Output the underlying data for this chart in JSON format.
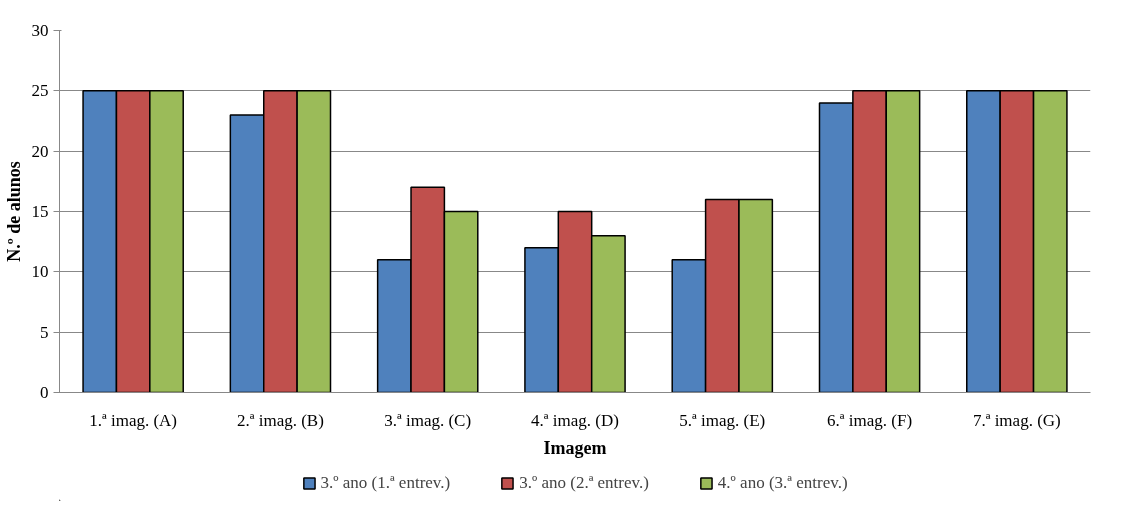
{
  "chart_data": {
    "type": "bar",
    "xlabel": "Imagem",
    "ylabel": "N.º de alunos",
    "categories": [
      "1.ª imag. (A)",
      "2.ª imag. (B)",
      "3.ª imag. (C)",
      "4.ª imag. (D)",
      "5.ª imag. (E)",
      "6.ª imag. (F)",
      "7.ª imag. (G)"
    ],
    "series": [
      {
        "name": "3.º ano (1.ª entrev.)",
        "color": "#4f81bd",
        "values": [
          25,
          23,
          11,
          12,
          11,
          24,
          25
        ]
      },
      {
        "name": "3.º ano (2.ª entrev.)",
        "color": "#c0504d",
        "values": [
          25,
          25,
          17,
          15,
          16,
          25,
          25
        ]
      },
      {
        "name": "4.º ano (3.ª entrev.)",
        "color": "#9bbb59",
        "values": [
          25,
          25,
          15,
          13,
          16,
          25,
          25
        ]
      }
    ],
    "ylim": [
      0,
      30
    ],
    "yticks": [
      0,
      5,
      10,
      15,
      20,
      25,
      30
    ],
    "grid": "y",
    "legend": "bottom"
  }
}
